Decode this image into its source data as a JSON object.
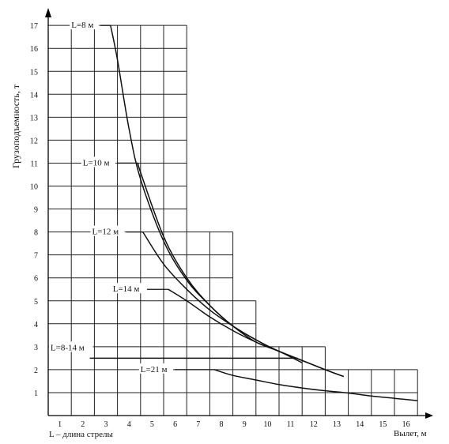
{
  "chart_data": {
    "type": "line",
    "title": "",
    "ylabel": "Грузоподъемность, т",
    "xlabel": "Вылет, м",
    "x_ticks": [
      "1",
      "2",
      "3",
      "4",
      "5",
      "6",
      "7",
      "8",
      "9",
      "10",
      "11",
      "12",
      "13",
      "14",
      "15",
      "16"
    ],
    "y_ticks": [
      "1",
      "2",
      "3",
      "4",
      "5",
      "6",
      "7",
      "8",
      "9",
      "10",
      "11",
      "12",
      "13",
      "14",
      "15",
      "16",
      "17"
    ],
    "xlim": [
      0,
      16
    ],
    "ylim": [
      0,
      17
    ],
    "grid": true,
    "footnote": "L – длина стрелы",
    "grid_envelope": [
      {
        "x_from": 0,
        "x_to": 6,
        "y_top": 17
      },
      {
        "x_from": 6,
        "x_to": 8,
        "y_top": 8
      },
      {
        "x_from": 8,
        "x_to": 9,
        "y_top": 5
      },
      {
        "x_from": 9,
        "x_to": 12,
        "y_top": 3
      },
      {
        "x_from": 12,
        "x_to": 16,
        "y_top": 2
      }
    ],
    "series": [
      {
        "name": "L=8 м",
        "label_at": {
          "x": 1,
          "y": 17
        },
        "points": [
          [
            2.7,
            17
          ],
          [
            3.0,
            15.5
          ],
          [
            3.5,
            12.5
          ],
          [
            4.0,
            10.3
          ],
          [
            5.0,
            7.6
          ],
          [
            6.0,
            5.9
          ],
          [
            7.0,
            4.8
          ],
          [
            8.0,
            3.9
          ],
          [
            9.0,
            3.2
          ],
          [
            10.0,
            2.8
          ],
          [
            11.0,
            2.3
          ]
        ]
      },
      {
        "name": "L=10 м",
        "label_at": {
          "x": 1.5,
          "y": 11
        },
        "points": [
          [
            3.9,
            11.0
          ],
          [
            4.0,
            10.6
          ],
          [
            5.0,
            7.8
          ],
          [
            6.0,
            6.0
          ],
          [
            7.0,
            4.8
          ],
          [
            8.0,
            3.9
          ],
          [
            9.0,
            3.3
          ],
          [
            10.0,
            2.8
          ],
          [
            11.0,
            2.4
          ]
        ]
      },
      {
        "name": "L=12 м",
        "label_at": {
          "x": 1.9,
          "y": 8
        },
        "points": [
          [
            4.1,
            8.0
          ],
          [
            5.0,
            6.6
          ],
          [
            6.0,
            5.5
          ],
          [
            7.0,
            4.6
          ],
          [
            8.0,
            3.9
          ],
          [
            9.0,
            3.3
          ],
          [
            10.0,
            2.8
          ],
          [
            11.0,
            2.4
          ],
          [
            12.0,
            2.0
          ],
          [
            12.8,
            1.7
          ]
        ]
      },
      {
        "name": "L=14 м",
        "label_at": {
          "x": 2.8,
          "y": 5.5
        },
        "points": [
          [
            5.2,
            5.5
          ],
          [
            6.0,
            5.0
          ],
          [
            7.0,
            4.3
          ],
          [
            8.0,
            3.7
          ],
          [
            9.0,
            3.2
          ],
          [
            10.0,
            2.8
          ],
          [
            11.0,
            2.4
          ],
          [
            12.0,
            2.0
          ],
          [
            12.8,
            1.7
          ]
        ]
      },
      {
        "name": "L=8-14 м",
        "label_at": {
          "x": 0.1,
          "y": 2.95
        },
        "points": [
          [
            1.8,
            2.5
          ],
          [
            10.8,
            2.5
          ]
        ]
      },
      {
        "name": "L=21 м",
        "label_at": {
          "x": 4.0,
          "y": 2.0
        },
        "points": [
          [
            7.2,
            2.0
          ],
          [
            8.0,
            1.75
          ],
          [
            9.0,
            1.55
          ],
          [
            10.0,
            1.35
          ],
          [
            11.0,
            1.2
          ],
          [
            12.0,
            1.08
          ],
          [
            13.0,
            0.98
          ],
          [
            14.0,
            0.85
          ],
          [
            15.0,
            0.75
          ],
          [
            16.0,
            0.65
          ]
        ]
      }
    ]
  }
}
